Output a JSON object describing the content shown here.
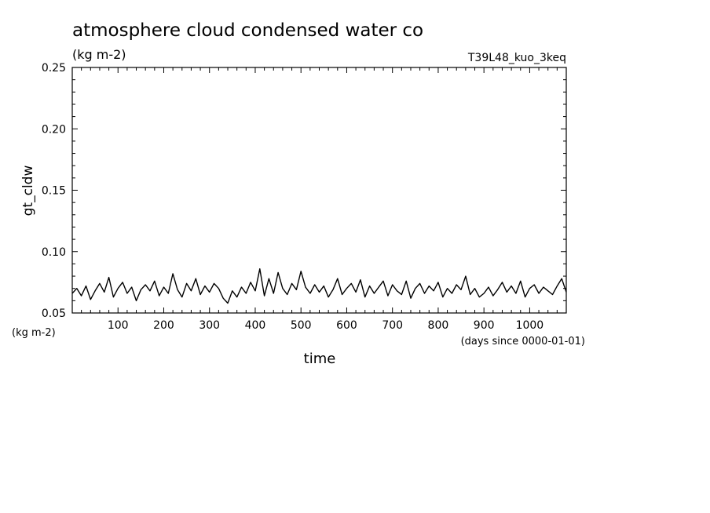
{
  "chart_data": {
    "type": "line",
    "title": "atmosphere cloud condensed water co",
    "subtitle": "(kg m-2)",
    "run_label": "T39L48_kuo_3keq",
    "xlabel": "time",
    "xunit": "(days since 0000-01-01)",
    "ylabel": "gt_cldw",
    "yunit": "(kg m-2)",
    "xlim": [
      0,
      1080
    ],
    "ylim": [
      0.05,
      0.25
    ],
    "x_ticks": [
      100,
      200,
      300,
      400,
      500,
      600,
      700,
      800,
      900,
      1000
    ],
    "x_tick_labels": [
      "100",
      "200",
      "300",
      "400",
      "500",
      "600",
      "700",
      "800",
      "900",
      "1000"
    ],
    "y_ticks": [
      0.05,
      0.1,
      0.15,
      0.2,
      0.25
    ],
    "y_tick_labels": [
      "0.05",
      "0.10",
      "0.15",
      "0.20",
      "0.25"
    ],
    "grid": false,
    "series": [
      {
        "color": "#000000",
        "x": [
          0,
          10,
          20,
          30,
          40,
          50,
          60,
          70,
          80,
          90,
          100,
          110,
          120,
          130,
          140,
          150,
          160,
          170,
          180,
          190,
          200,
          210,
          220,
          230,
          240,
          250,
          260,
          270,
          280,
          290,
          300,
          310,
          320,
          330,
          340,
          350,
          360,
          370,
          380,
          390,
          400,
          410,
          420,
          430,
          440,
          450,
          460,
          470,
          480,
          490,
          500,
          510,
          520,
          530,
          540,
          550,
          560,
          570,
          580,
          590,
          600,
          610,
          620,
          630,
          640,
          650,
          660,
          670,
          680,
          690,
          700,
          710,
          720,
          730,
          740,
          750,
          760,
          770,
          780,
          790,
          800,
          810,
          820,
          830,
          840,
          850,
          860,
          870,
          880,
          890,
          900,
          910,
          920,
          930,
          940,
          950,
          960,
          970,
          980,
          990,
          1000,
          1010,
          1020,
          1030,
          1040,
          1050,
          1060,
          1070,
          1080
        ],
        "values": [
          0.066,
          0.07,
          0.064,
          0.072,
          0.061,
          0.068,
          0.074,
          0.067,
          0.079,
          0.063,
          0.07,
          0.075,
          0.066,
          0.071,
          0.06,
          0.069,
          0.073,
          0.068,
          0.076,
          0.064,
          0.071,
          0.066,
          0.082,
          0.069,
          0.063,
          0.074,
          0.068,
          0.078,
          0.065,
          0.072,
          0.067,
          0.074,
          0.07,
          0.062,
          0.058,
          0.068,
          0.063,
          0.071,
          0.066,
          0.075,
          0.068,
          0.086,
          0.064,
          0.078,
          0.066,
          0.083,
          0.07,
          0.065,
          0.074,
          0.069,
          0.084,
          0.071,
          0.066,
          0.073,
          0.067,
          0.072,
          0.063,
          0.069,
          0.078,
          0.065,
          0.07,
          0.074,
          0.067,
          0.077,
          0.063,
          0.072,
          0.066,
          0.071,
          0.076,
          0.064,
          0.073,
          0.068,
          0.065,
          0.076,
          0.062,
          0.07,
          0.074,
          0.066,
          0.072,
          0.068,
          0.075,
          0.063,
          0.07,
          0.066,
          0.073,
          0.069,
          0.08,
          0.065,
          0.07,
          0.063,
          0.066,
          0.071,
          0.064,
          0.069,
          0.075,
          0.067,
          0.072,
          0.066,
          0.076,
          0.063,
          0.07,
          0.073,
          0.066,
          0.071,
          0.068,
          0.065,
          0.072,
          0.078,
          0.067
        ]
      }
    ]
  }
}
